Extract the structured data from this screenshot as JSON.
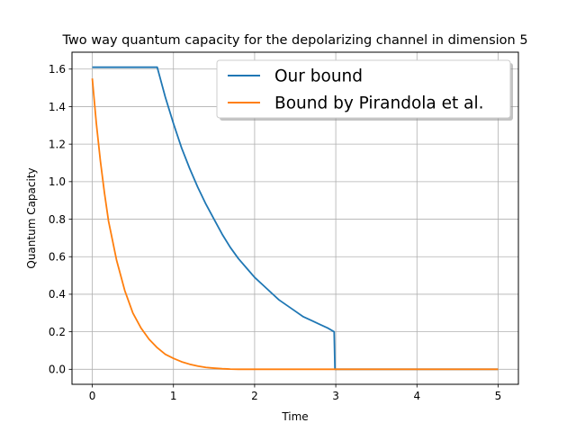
{
  "chart_data": {
    "type": "line",
    "title": "Two way quantum capacity for the depolarizing channel in dimension 5",
    "xlabel": "Time",
    "ylabel": "Quantum Capacity",
    "xlim": [
      -0.25,
      5.25
    ],
    "ylim": [
      -0.08,
      1.69
    ],
    "xticks": [
      0,
      1,
      2,
      3,
      4,
      5
    ],
    "xtick_labels": [
      "0",
      "1",
      "2",
      "3",
      "4",
      "5"
    ],
    "yticks": [
      0.0,
      0.2,
      0.4,
      0.6,
      0.8,
      1.0,
      1.2,
      1.4,
      1.6
    ],
    "ytick_labels": [
      "0.0",
      "0.2",
      "0.4",
      "0.6",
      "0.8",
      "1.0",
      "1.2",
      "1.4",
      "1.6"
    ],
    "grid": true,
    "legend_position": "top-right",
    "series": [
      {
        "name": "Our bound",
        "color": "#1f77b4",
        "x": [
          0,
          0.2,
          0.4,
          0.6,
          0.8,
          0.9,
          1.0,
          1.1,
          1.2,
          1.3,
          1.4,
          1.5,
          1.6,
          1.7,
          1.8,
          1.9,
          2.0,
          2.1,
          2.2,
          2.3,
          2.4,
          2.5,
          2.6,
          2.7,
          2.8,
          2.9,
          2.98,
          2.99,
          3.0,
          3.5,
          4.0,
          4.5,
          5.0
        ],
        "y": [
          1.61,
          1.61,
          1.61,
          1.61,
          1.61,
          1.45,
          1.31,
          1.18,
          1.07,
          0.97,
          0.88,
          0.8,
          0.72,
          0.65,
          0.59,
          0.54,
          0.49,
          0.45,
          0.41,
          0.37,
          0.34,
          0.31,
          0.28,
          0.26,
          0.24,
          0.22,
          0.2,
          0.0,
          0.0,
          0.0,
          0.0,
          0.0,
          0.0
        ]
      },
      {
        "name": "Bound by Pirandola et al.",
        "color": "#ff7f0e",
        "x": [
          0,
          0.05,
          0.1,
          0.15,
          0.2,
          0.3,
          0.4,
          0.5,
          0.6,
          0.7,
          0.8,
          0.9,
          1.0,
          1.1,
          1.2,
          1.3,
          1.4,
          1.5,
          1.6,
          1.7,
          1.8,
          2.0,
          2.5,
          3.0,
          3.5,
          4.0,
          4.5,
          5.0
        ],
        "y": [
          1.55,
          1.31,
          1.11,
          0.94,
          0.79,
          0.58,
          0.42,
          0.3,
          0.22,
          0.16,
          0.115,
          0.08,
          0.058,
          0.04,
          0.027,
          0.017,
          0.01,
          0.006,
          0.003,
          0.001,
          0.0,
          0.0,
          0.0,
          0.0,
          0.0,
          0.0,
          0.0,
          0.0
        ]
      }
    ]
  }
}
